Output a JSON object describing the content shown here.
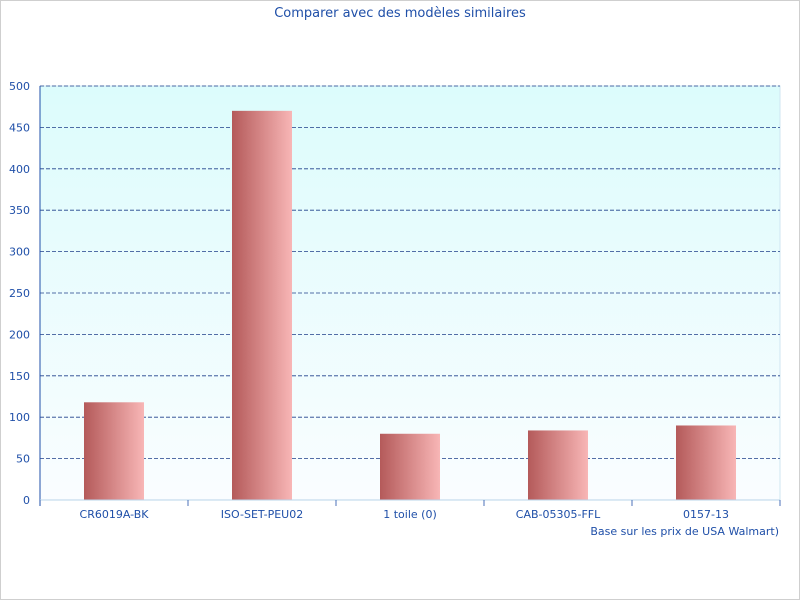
{
  "chart_data": {
    "type": "bar",
    "title": "Comparer avec des modèles similaires",
    "xlabel": "",
    "ylabel": "",
    "note": "Base sur les prix de USA Walmart)",
    "categories": [
      "CR6019A-BK",
      "ISO-SET-PEU02",
      "1 toile (0)",
      "CAB-05305-FFL",
      "0157-13"
    ],
    "values": [
      118,
      470,
      80,
      84,
      90
    ],
    "ylim": [
      0,
      500
    ],
    "yticks": [
      0,
      50,
      100,
      150,
      200,
      250,
      300,
      350,
      400,
      450,
      500
    ],
    "grid": true,
    "colors": {
      "text": "#1f4fa8",
      "grid": "#1f3f8a",
      "bar_dark": "#b45a5a",
      "bar_light": "#f8b6b6",
      "plot_top": "#dcfcfc",
      "plot_bottom": "#fafdff"
    }
  }
}
